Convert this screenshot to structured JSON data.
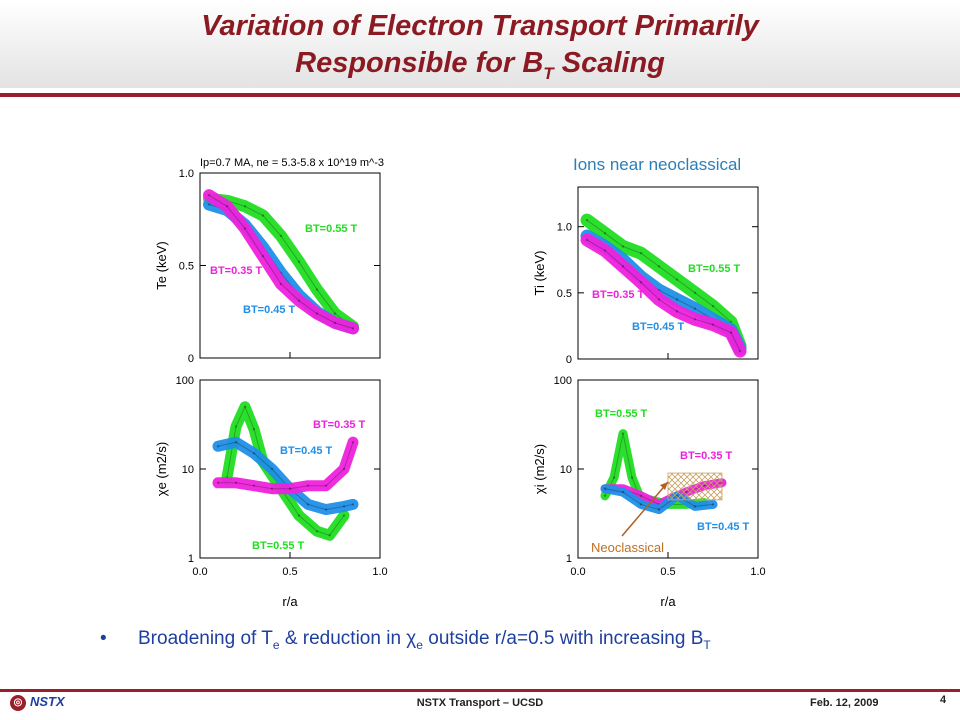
{
  "slide": {
    "title_line1": "Variation of Electron Transport Primarily",
    "title_line2_prefix": "Responsible for B",
    "title_line2_sub": "T",
    "title_line2_suffix": " Scaling",
    "top_right_label": "Ions near neoclassical",
    "condition_label": "Ip=0.7 MA, ne = 5.3-5.8 x 10^19 m^-3",
    "caption": {
      "prefix": "Broadening of T",
      "sub1": "e",
      "mid1": " & reduction in ",
      "chi": "χ",
      "sub2": "e",
      "mid2": " outside r/a=0.5 with increasing B",
      "sub3": "T"
    },
    "footer": {
      "logo": "NSTX",
      "center": "NSTX Transport – UCSD",
      "date": "Feb. 12, 2009",
      "page": "4"
    }
  },
  "colors": {
    "green": "#22dd22",
    "blue": "#1f8fe8",
    "magenta": "#ee22dd",
    "title": "#8b1a22",
    "caption": "#1f3f9e"
  },
  "chart_data": [
    {
      "type": "line",
      "panel": "Te",
      "ylabel": "Te (keV)",
      "xlim": [
        0,
        1.0
      ],
      "ylim": [
        0,
        1.0
      ],
      "yticks": [
        "0",
        "0.5",
        "1.0"
      ],
      "series": [
        {
          "name": "BT=0.55 T",
          "color": "green",
          "x": [
            0.05,
            0.15,
            0.25,
            0.35,
            0.45,
            0.55,
            0.65,
            0.75,
            0.85
          ],
          "y": [
            0.86,
            0.85,
            0.82,
            0.77,
            0.66,
            0.52,
            0.37,
            0.24,
            0.17
          ]
        },
        {
          "name": "BT=0.45 T",
          "color": "blue",
          "x": [
            0.05,
            0.15,
            0.25,
            0.35,
            0.45,
            0.55,
            0.65,
            0.75,
            0.85
          ],
          "y": [
            0.83,
            0.8,
            0.72,
            0.6,
            0.46,
            0.34,
            0.25,
            0.19,
            0.16
          ]
        },
        {
          "name": "BT=0.35 T",
          "color": "magenta",
          "x": [
            0.05,
            0.15,
            0.25,
            0.35,
            0.45,
            0.55,
            0.65,
            0.75,
            0.85
          ],
          "y": [
            0.88,
            0.82,
            0.7,
            0.55,
            0.4,
            0.31,
            0.24,
            0.19,
            0.16
          ]
        }
      ]
    },
    {
      "type": "line",
      "panel": "chi_e",
      "ylabel": "χe (m2/s)",
      "xlabel": "r/a",
      "xlim": [
        0,
        1.0
      ],
      "ylim": [
        1,
        100
      ],
      "yscale": "log",
      "xticks": [
        "0.0",
        "0.5",
        "1.0"
      ],
      "yticks": [
        "1",
        "10",
        "100"
      ],
      "series": [
        {
          "name": "BT=0.55 T",
          "color": "green",
          "x": [
            0.15,
            0.2,
            0.25,
            0.3,
            0.35,
            0.45,
            0.55,
            0.65,
            0.72,
            0.8
          ],
          "y": [
            8,
            30,
            50,
            28,
            12,
            6,
            3,
            2,
            1.8,
            3
          ]
        },
        {
          "name": "BT=0.45 T",
          "color": "blue",
          "x": [
            0.1,
            0.2,
            0.3,
            0.4,
            0.5,
            0.6,
            0.7,
            0.8,
            0.85
          ],
          "y": [
            18,
            20,
            15,
            10,
            6,
            4,
            3.5,
            3.8,
            4
          ]
        },
        {
          "name": "BT=0.35 T",
          "color": "magenta",
          "x": [
            0.1,
            0.2,
            0.3,
            0.4,
            0.5,
            0.6,
            0.7,
            0.8,
            0.85
          ],
          "y": [
            7,
            7,
            6.5,
            6,
            6,
            6.5,
            6.5,
            10,
            20
          ]
        }
      ]
    },
    {
      "type": "line",
      "panel": "Ti",
      "ylabel": "Ti (keV)",
      "xlim": [
        0,
        1.0
      ],
      "ylim": [
        0,
        1.3
      ],
      "yticks": [
        "0",
        "0.5",
        "1.0"
      ],
      "series": [
        {
          "name": "BT=0.55 T",
          "color": "green",
          "x": [
            0.05,
            0.15,
            0.25,
            0.35,
            0.45,
            0.55,
            0.65,
            0.75,
            0.85,
            0.9
          ],
          "y": [
            1.05,
            0.95,
            0.85,
            0.8,
            0.7,
            0.6,
            0.5,
            0.4,
            0.28,
            0.1
          ]
        },
        {
          "name": "BT=0.45 T",
          "color": "blue",
          "x": [
            0.05,
            0.15,
            0.25,
            0.35,
            0.45,
            0.55,
            0.65,
            0.75,
            0.85,
            0.9
          ],
          "y": [
            0.93,
            0.85,
            0.75,
            0.62,
            0.52,
            0.45,
            0.38,
            0.3,
            0.22,
            0.08
          ]
        },
        {
          "name": "BT=0.35 T",
          "color": "magenta",
          "x": [
            0.05,
            0.15,
            0.25,
            0.35,
            0.45,
            0.55,
            0.65,
            0.75,
            0.85,
            0.9
          ],
          "y": [
            0.9,
            0.82,
            0.7,
            0.58,
            0.45,
            0.36,
            0.3,
            0.26,
            0.2,
            0.06
          ]
        }
      ]
    },
    {
      "type": "line",
      "panel": "chi_i",
      "ylabel": "χi (m2/s)",
      "xlabel": "r/a",
      "xlim": [
        0,
        1.0
      ],
      "ylim": [
        1,
        100
      ],
      "yscale": "log",
      "xticks": [
        "0.0",
        "0.5",
        "1.0"
      ],
      "yticks": [
        "1",
        "10",
        "100"
      ],
      "annotation": "Neoclassical",
      "series": [
        {
          "name": "BT=0.55 T",
          "color": "green",
          "x": [
            0.15,
            0.2,
            0.25,
            0.3,
            0.35,
            0.4,
            0.5,
            0.6,
            0.7
          ],
          "y": [
            5,
            8,
            25,
            8,
            4.5,
            4.5,
            4,
            4,
            4.2
          ]
        },
        {
          "name": "BT=0.35 T",
          "color": "magenta",
          "x": [
            0.15,
            0.25,
            0.35,
            0.45,
            0.5,
            0.6,
            0.7,
            0.8
          ],
          "y": [
            6,
            6,
            5,
            4,
            4.5,
            5.5,
            6.5,
            7
          ]
        },
        {
          "name": "BT=0.45 T",
          "color": "blue",
          "x": [
            0.15,
            0.25,
            0.35,
            0.45,
            0.55,
            0.65,
            0.75
          ],
          "y": [
            6,
            5.5,
            4,
            3.5,
            5,
            3.8,
            4
          ]
        },
        {
          "name": "Neoclassical",
          "color": "tan",
          "x": [
            0.5,
            0.8
          ],
          "y": [
            4.5,
            9
          ]
        }
      ]
    }
  ]
}
